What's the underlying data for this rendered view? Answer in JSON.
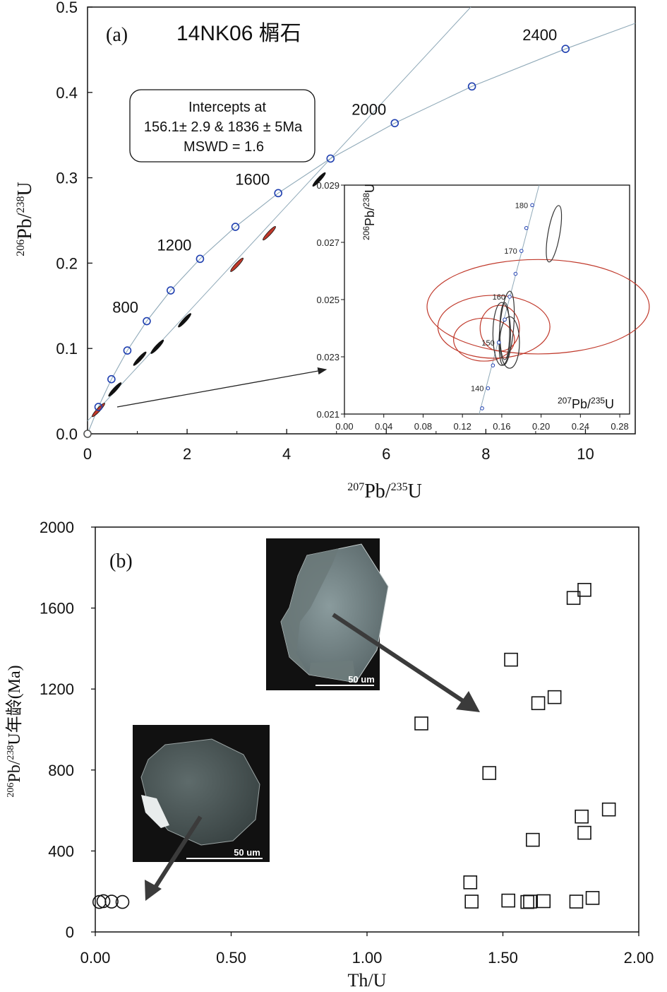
{
  "chart_data": [
    {
      "type": "scatter",
      "panel_label": "(a)",
      "title": "14NK06 榍石",
      "xlabel": {
        "pb": "Pb/",
        "u": "U",
        "sup1": "207",
        "sup2": "235"
      },
      "ylabel": {
        "pb": "Pb/",
        "u": "U",
        "sup1": "206",
        "sup2": "238"
      },
      "xlim": [
        0,
        11
      ],
      "ylim": [
        0,
        0.5
      ],
      "x_ticks": [
        "0",
        "2",
        "4",
        "6",
        "8",
        "10"
      ],
      "y_ticks": [
        "0.0",
        "0.1",
        "0.2",
        "0.3",
        "0.4",
        "0.5"
      ],
      "annotation": {
        "line1": "Intercepts at",
        "line2": "156.1± 2.9 & 1836 ± 5Ma",
        "line3": "MSWD = 1.6"
      },
      "concordia_points": [
        {
          "age": 0,
          "x": 0.0,
          "y": 0.0
        },
        {
          "age": 200,
          "x": 0.22,
          "y": 0.0315
        },
        {
          "age": 400,
          "x": 0.48,
          "y": 0.064
        },
        {
          "age": 600,
          "x": 0.8,
          "y": 0.0976
        },
        {
          "age": 800,
          "x": 1.19,
          "y": 0.132
        },
        {
          "age": 1000,
          "x": 1.67,
          "y": 0.168
        },
        {
          "age": 1200,
          "x": 2.26,
          "y": 0.205
        },
        {
          "age": 1400,
          "x": 2.97,
          "y": 0.2425
        },
        {
          "age": 1600,
          "x": 3.83,
          "y": 0.282
        },
        {
          "age": 1800,
          "x": 4.88,
          "y": 0.3225
        },
        {
          "age": 2000,
          "x": 6.17,
          "y": 0.364
        },
        {
          "age": 2200,
          "x": 7.72,
          "y": 0.407
        },
        {
          "age": 2400,
          "x": 9.6,
          "y": 0.451
        }
      ],
      "age_labels": [
        {
          "text": "800",
          "x": 1.19,
          "y": 0.132
        },
        {
          "text": "1200",
          "x": 2.26,
          "y": 0.205
        },
        {
          "text": "1600",
          "x": 3.83,
          "y": 0.282
        },
        {
          "text": "2000",
          "x": 6.17,
          "y": 0.364
        },
        {
          "text": "2400",
          "x": 9.6,
          "y": 0.451
        }
      ],
      "discordia_ellipses": [
        {
          "x": 0.22,
          "y": 0.028,
          "color": "#c0392b"
        },
        {
          "x": 0.55,
          "y": 0.052,
          "color": "#111111"
        },
        {
          "x": 1.05,
          "y": 0.088,
          "color": "#111111"
        },
        {
          "x": 1.4,
          "y": 0.102,
          "color": "#111111"
        },
        {
          "x": 1.95,
          "y": 0.133,
          "color": "#111111"
        },
        {
          "x": 3.0,
          "y": 0.198,
          "color": "#c0392b"
        },
        {
          "x": 3.65,
          "y": 0.235,
          "color": "#c0392b"
        },
        {
          "x": 4.65,
          "y": 0.298,
          "color": "#111111"
        }
      ],
      "inset": {
        "xlabel": {
          "pb": "Pb/",
          "u": "U",
          "sup1": "207",
          "sup2": "235"
        },
        "ylabel": {
          "pb": "Pb/",
          "u": "U",
          "sup1": "206",
          "sup2": "238"
        },
        "xlim": [
          0,
          0.29
        ],
        "ylim": [
          0.021,
          0.029
        ],
        "x_ticks": [
          "0.00",
          "0.04",
          "0.08",
          "0.12",
          "0.16",
          "0.20",
          "0.24",
          "0.28"
        ],
        "y_ticks": [
          "0.021",
          "0.023",
          "0.025",
          "0.027",
          "0.029"
        ],
        "concordia_points": [
          {
            "age": 135,
            "x": 0.14,
            "y": 0.0212
          },
          {
            "age": 140,
            "x": 0.146,
            "y": 0.0219
          },
          {
            "age": 145,
            "x": 0.151,
            "y": 0.0227
          },
          {
            "age": 150,
            "x": 0.157,
            "y": 0.0235
          },
          {
            "age": 155,
            "x": 0.163,
            "y": 0.0243
          },
          {
            "age": 160,
            "x": 0.168,
            "y": 0.0251
          },
          {
            "age": 165,
            "x": 0.174,
            "y": 0.0259
          },
          {
            "age": 170,
            "x": 0.18,
            "y": 0.0267
          },
          {
            "age": 175,
            "x": 0.185,
            "y": 0.0275
          },
          {
            "age": 180,
            "x": 0.191,
            "y": 0.0283
          }
        ],
        "age_labels": [
          {
            "text": "140",
            "x": 0.146,
            "y": 0.0219
          },
          {
            "text": "150",
            "x": 0.157,
            "y": 0.0235
          },
          {
            "text": "160",
            "x": 0.168,
            "y": 0.0251
          },
          {
            "text": "170",
            "x": 0.18,
            "y": 0.0267
          },
          {
            "text": "180",
            "x": 0.191,
            "y": 0.0283
          }
        ],
        "ellipses": [
          {
            "cx": 0.197,
            "cy": 0.02475,
            "rx": 0.113,
            "ry": 0.00165,
            "rot": 0,
            "color": "#c0392b"
          },
          {
            "cx": 0.152,
            "cy": 0.02405,
            "rx": 0.057,
            "ry": 0.0011,
            "rot": 0,
            "color": "#c0392b"
          },
          {
            "cx": 0.142,
            "cy": 0.0236,
            "rx": 0.031,
            "ry": 0.00075,
            "rot": 0,
            "color": "#c0392b"
          },
          {
            "cx": 0.158,
            "cy": 0.024,
            "rx": 0.02,
            "ry": 0.0008,
            "rot": 0,
            "color": "#c0392b"
          },
          {
            "cx": 0.213,
            "cy": 0.0273,
            "rx": 0.006,
            "ry": 0.001,
            "rot": 10,
            "color": "#333333"
          },
          {
            "cx": 0.165,
            "cy": 0.024,
            "rx": 0.007,
            "ry": 0.0013,
            "rot": 5,
            "color": "#333333"
          },
          {
            "cx": 0.16,
            "cy": 0.0238,
            "rx": 0.009,
            "ry": 0.0011,
            "rot": 0,
            "color": "#333333"
          },
          {
            "cx": 0.163,
            "cy": 0.0239,
            "rx": 0.005,
            "ry": 0.001,
            "rot": 0,
            "color": "#333333"
          },
          {
            "cx": 0.168,
            "cy": 0.0235,
            "rx": 0.01,
            "ry": 0.0009,
            "rot": 0,
            "color": "#333333"
          }
        ]
      }
    },
    {
      "type": "scatter",
      "panel_label": "(b)",
      "xlabel": "Th/U",
      "ylabel": {
        "pre": "Pb/",
        "mid": "U年龄(Ma)",
        "sup1": "206",
        "sup2": "238"
      },
      "xlim": [
        0,
        2.0
      ],
      "ylim": [
        0,
        2000
      ],
      "x_ticks": [
        "0.00",
        "0.50",
        "1.00",
        "1.50",
        "2.00"
      ],
      "y_ticks": [
        "0",
        "400",
        "800",
        "1200",
        "1600",
        "2000"
      ],
      "series": [
        {
          "marker": "circle",
          "points": [
            [
              0.015,
              148
            ],
            [
              0.03,
              152
            ],
            [
              0.06,
              150
            ],
            [
              0.1,
              148
            ]
          ]
        },
        {
          "marker": "square",
          "points": [
            [
              1.2,
              1030
            ],
            [
              1.38,
              245
            ],
            [
              1.385,
              150
            ],
            [
              1.45,
              785
            ],
            [
              1.52,
              155
            ],
            [
              1.53,
              1345
            ],
            [
              1.59,
              148
            ],
            [
              1.6,
              150
            ],
            [
              1.61,
              455
            ],
            [
              1.63,
              1130
            ],
            [
              1.65,
              152
            ],
            [
              1.69,
              1160
            ],
            [
              1.76,
              1650
            ],
            [
              1.77,
              150
            ],
            [
              1.79,
              570
            ],
            [
              1.8,
              1690
            ],
            [
              1.8,
              490
            ],
            [
              1.83,
              168
            ],
            [
              1.89,
              605
            ]
          ]
        }
      ],
      "cl_images": [
        {
          "scale": "50 um"
        },
        {
          "scale": "50 um"
        }
      ]
    }
  ]
}
